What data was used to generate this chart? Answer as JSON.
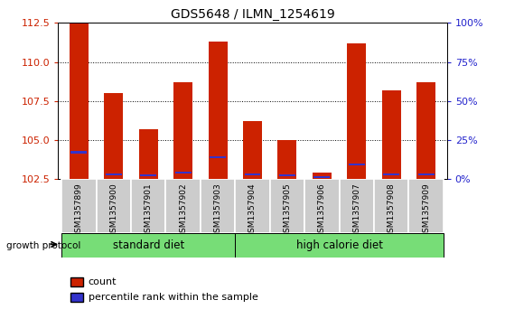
{
  "title": "GDS5648 / ILMN_1254619",
  "samples": [
    "GSM1357899",
    "GSM1357900",
    "GSM1357901",
    "GSM1357902",
    "GSM1357903",
    "GSM1357904",
    "GSM1357905",
    "GSM1357906",
    "GSM1357907",
    "GSM1357908",
    "GSM1357909"
  ],
  "counts": [
    112.5,
    108.0,
    105.7,
    108.7,
    111.3,
    106.2,
    105.0,
    102.9,
    111.2,
    108.2,
    108.7
  ],
  "percentiles": [
    17,
    3,
    2,
    4,
    14,
    3,
    2,
    1,
    9,
    3,
    3
  ],
  "y_min": 102.5,
  "y_max": 112.5,
  "y_ticks": [
    102.5,
    105.0,
    107.5,
    110.0,
    112.5
  ],
  "right_y_ticks": [
    0,
    25,
    50,
    75,
    100
  ],
  "right_y_labels": [
    "0%",
    "25%",
    "50%",
    "75%",
    "100%"
  ],
  "bar_color": "#cc2200",
  "percentile_color": "#3333cc",
  "bar_width": 0.55,
  "group_labels": [
    "standard diet",
    "high calorie diet"
  ],
  "group_starts": [
    0,
    5
  ],
  "group_ends": [
    5,
    11
  ],
  "group_protocol_label": "growth protocol",
  "tick_label_color": "#cc2200",
  "right_tick_color": "#2222cc",
  "sample_box_color": "#cccccc",
  "group_box_color": "#77dd77"
}
